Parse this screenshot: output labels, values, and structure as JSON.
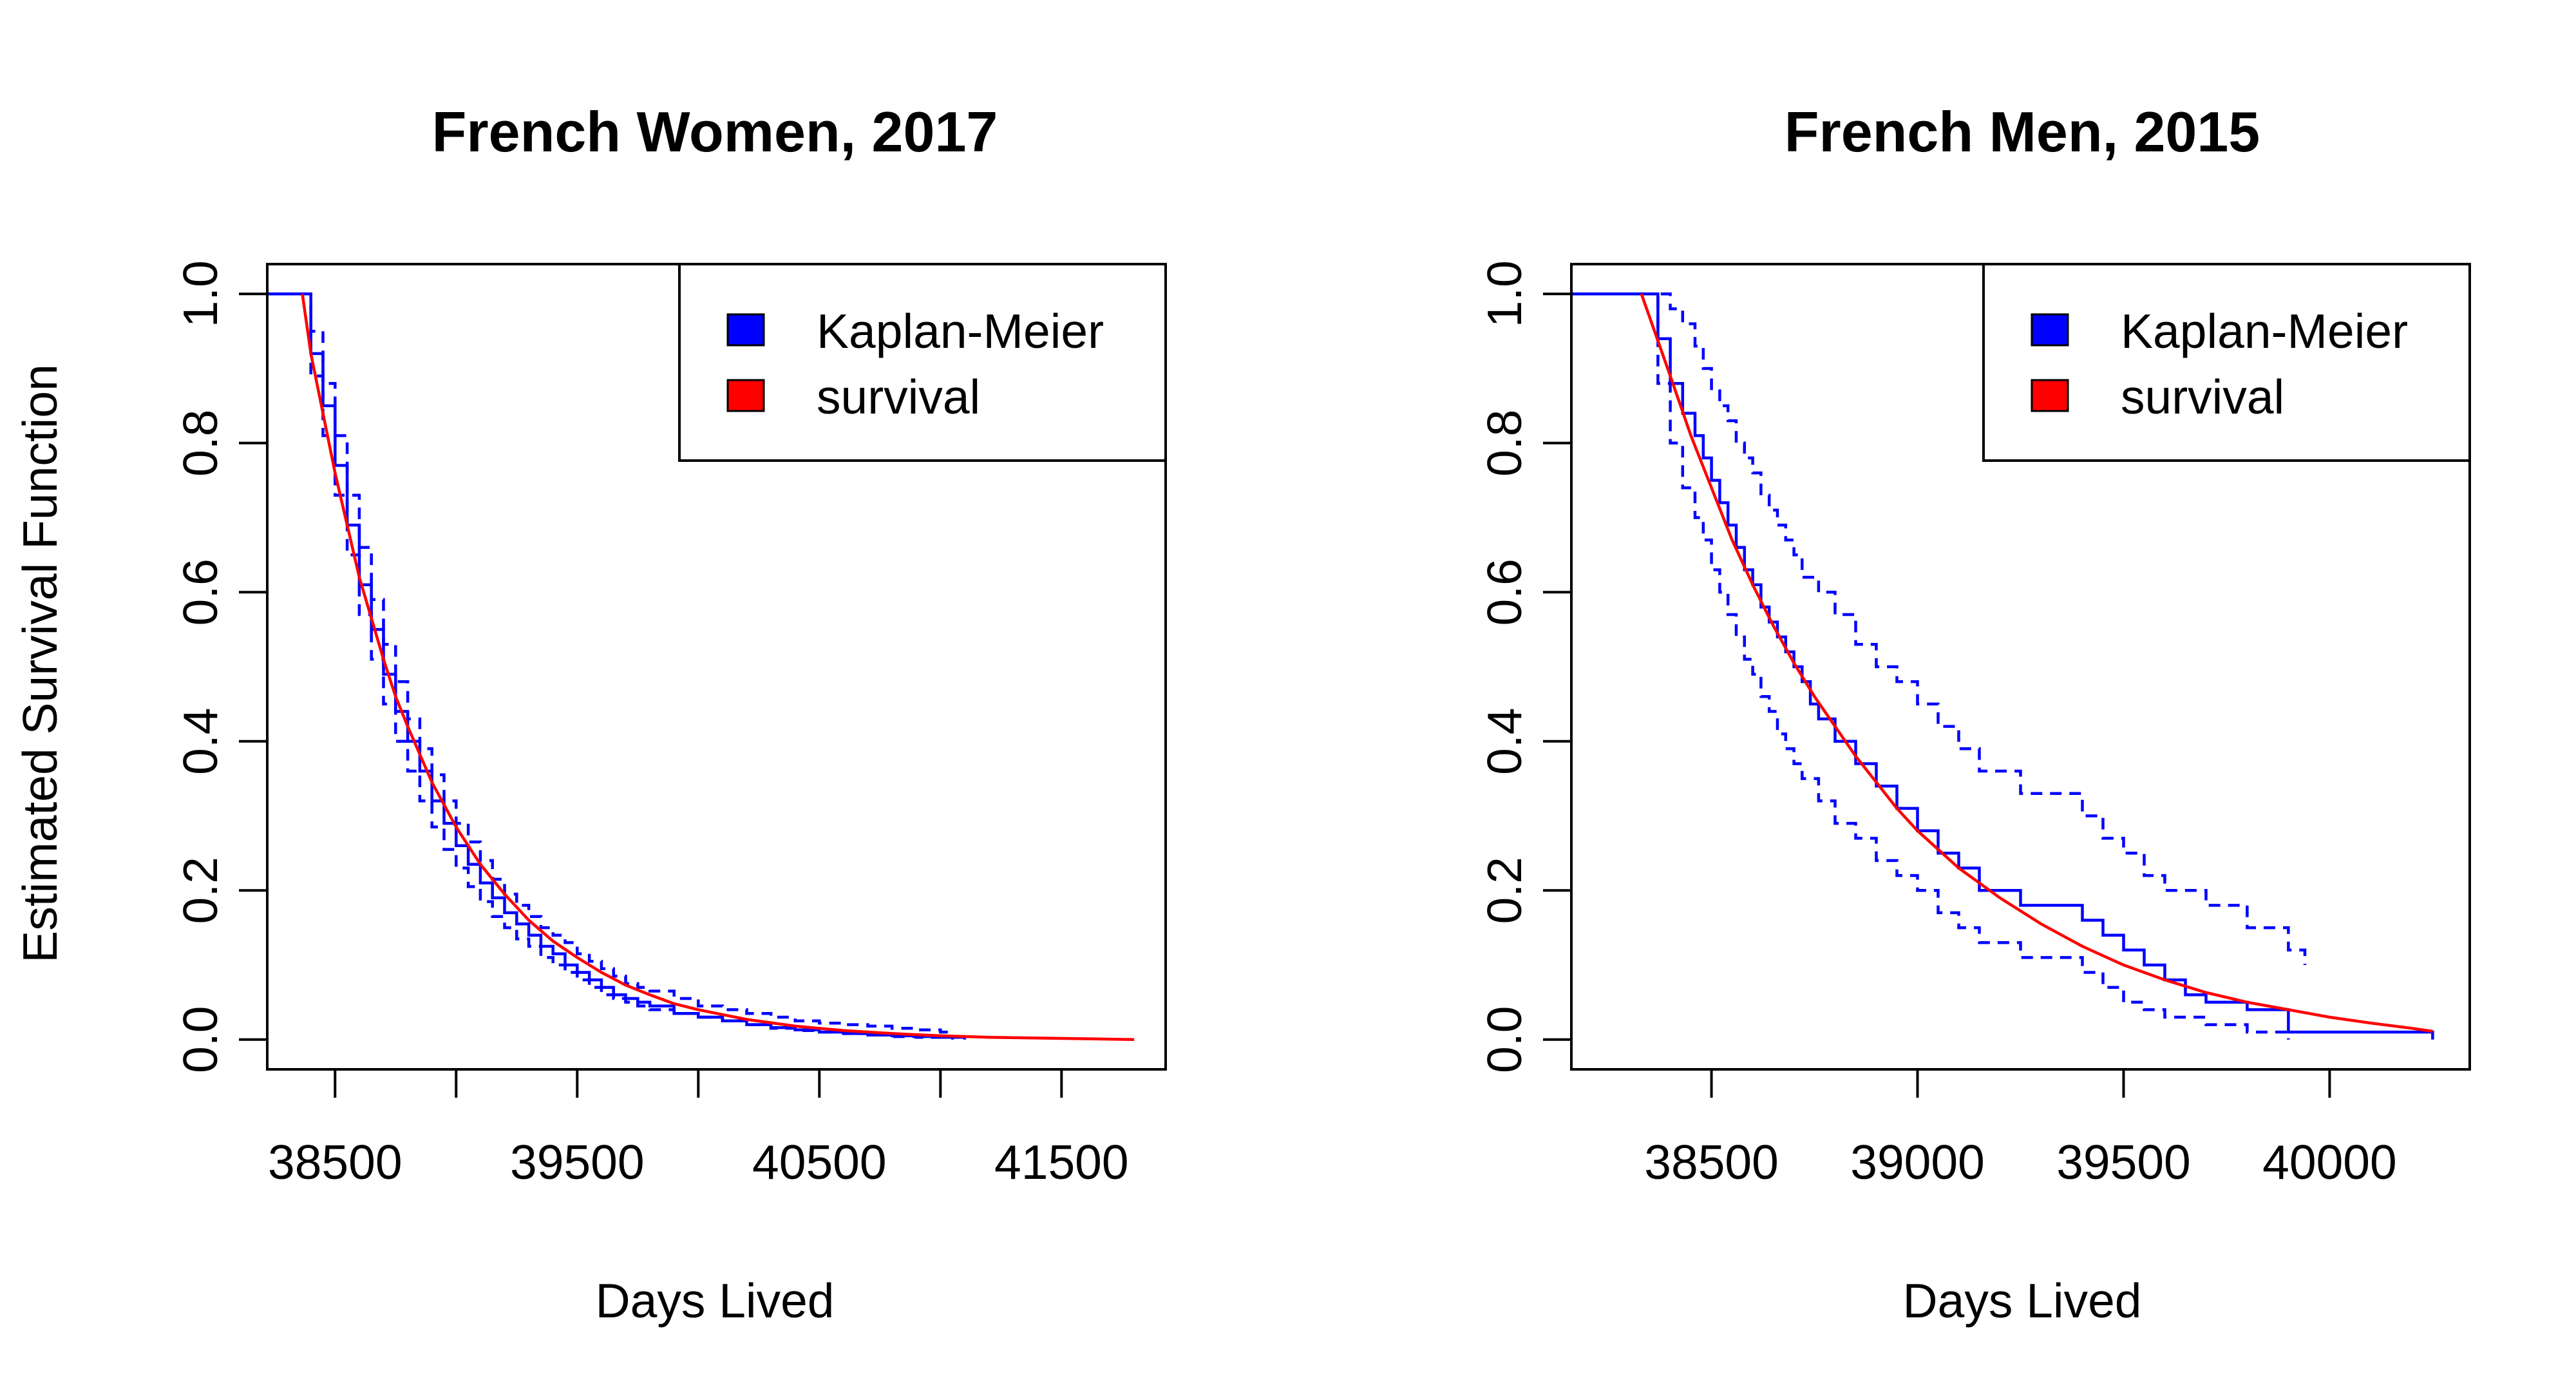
{
  "figure": {
    "shared_ylabel": "Estimated Survival Function"
  },
  "chart_data": [
    {
      "type": "line",
      "title": "French Women, 2017",
      "xlabel": "Days Lived",
      "ylabel": "Estimated Survival Function",
      "xlim": [
        38220,
        41930
      ],
      "ylim": [
        -0.04,
        1.04
      ],
      "xticks": [
        38500,
        39000,
        39500,
        40000,
        40500,
        41000,
        41500
      ],
      "xtick_labels": [
        "38500",
        "",
        "39500",
        "",
        "40500",
        "",
        "41500"
      ],
      "yticks": [
        0.0,
        0.2,
        0.4,
        0.6,
        0.8,
        1.0
      ],
      "ytick_labels": [
        "0.0",
        "0.2",
        "0.4",
        "0.6",
        "0.8",
        "1.0"
      ],
      "grid": false,
      "legend": {
        "position": "top-right",
        "entries": [
          {
            "label": "Kaplan-Meier",
            "color": "#0000ff"
          },
          {
            "label": "survival",
            "color": "#ff0000"
          }
        ]
      },
      "series": [
        {
          "name": "Kaplan-Meier",
          "color": "#0000ff",
          "style": "step",
          "x": [
            38220,
            38365,
            38400,
            38450,
            38500,
            38550,
            38600,
            38650,
            38700,
            38750,
            38800,
            38850,
            38900,
            38950,
            39000,
            39050,
            39100,
            39150,
            39200,
            39250,
            39300,
            39350,
            39400,
            39450,
            39500,
            39550,
            39600,
            39650,
            39700,
            39750,
            39800,
            39900,
            40000,
            40100,
            40200,
            40300,
            40400,
            40500,
            40600,
            40700,
            40800,
            40900,
            41000,
            41100
          ],
          "y": [
            1.0,
            1.0,
            0.92,
            0.85,
            0.77,
            0.69,
            0.61,
            0.55,
            0.49,
            0.44,
            0.4,
            0.36,
            0.32,
            0.29,
            0.26,
            0.235,
            0.21,
            0.19,
            0.17,
            0.155,
            0.14,
            0.125,
            0.115,
            0.1,
            0.09,
            0.08,
            0.07,
            0.06,
            0.055,
            0.05,
            0.045,
            0.035,
            0.03,
            0.025,
            0.02,
            0.016,
            0.013,
            0.01,
            0.008,
            0.006,
            0.005,
            0.004,
            0.003,
            0.0
          ]
        },
        {
          "name": "",
          "color": "#0000ff",
          "style": "dashed-step",
          "x": [
            38365,
            38400,
            38450,
            38500,
            38550,
            38600,
            38650,
            38700,
            38750,
            38800,
            38850,
            38900,
            38950,
            39000,
            39050,
            39100,
            39150,
            39200,
            39250,
            39300,
            39350,
            39400,
            39450,
            39500,
            39550,
            39600,
            39650,
            39700,
            39750,
            39800,
            39900,
            40000,
            40100,
            40200,
            40300,
            40400,
            40500,
            40600,
            40700,
            40800,
            40900,
            41000,
            41050
          ],
          "y": [
            1.0,
            0.95,
            0.88,
            0.81,
            0.73,
            0.66,
            0.59,
            0.53,
            0.48,
            0.43,
            0.39,
            0.355,
            0.32,
            0.29,
            0.265,
            0.24,
            0.215,
            0.195,
            0.18,
            0.165,
            0.15,
            0.14,
            0.13,
            0.115,
            0.105,
            0.095,
            0.085,
            0.075,
            0.07,
            0.065,
            0.055,
            0.045,
            0.04,
            0.035,
            0.03,
            0.025,
            0.022,
            0.02,
            0.018,
            0.015,
            0.013,
            0.01,
            0.0
          ]
        },
        {
          "name": "",
          "color": "#0000ff",
          "style": "dashed-step",
          "x": [
            38365,
            38400,
            38450,
            38500,
            38550,
            38600,
            38650,
            38700,
            38750,
            38800,
            38850,
            38900,
            38950,
            39000,
            39050,
            39100,
            39150,
            39200,
            39250,
            39300,
            39350,
            39400,
            39450,
            39500,
            39550,
            39600,
            39650,
            39700,
            39750,
            39800,
            39900,
            40000,
            40100,
            40200,
            40300,
            40400,
            40500,
            40600,
            40700,
            40800,
            40900,
            41000
          ],
          "y": [
            1.0,
            0.89,
            0.81,
            0.73,
            0.65,
            0.57,
            0.51,
            0.45,
            0.4,
            0.36,
            0.32,
            0.285,
            0.255,
            0.23,
            0.205,
            0.185,
            0.165,
            0.15,
            0.135,
            0.125,
            0.11,
            0.1,
            0.09,
            0.08,
            0.07,
            0.06,
            0.055,
            0.05,
            0.045,
            0.04,
            0.035,
            0.03,
            0.025,
            0.02,
            0.015,
            0.012,
            0.01,
            0.008,
            0.006,
            0.004,
            0.003,
            0.002
          ]
        },
        {
          "name": "survival",
          "color": "#ff0000",
          "style": "line",
          "x": [
            38365,
            38400,
            38450,
            38500,
            38550,
            38600,
            38650,
            38700,
            38750,
            38800,
            38900,
            39000,
            39100,
            39200,
            39300,
            39400,
            39500,
            39600,
            39700,
            39800,
            39900,
            40000,
            40200,
            40400,
            40600,
            40800,
            41000,
            41200,
            41400,
            41600,
            41800
          ],
          "y": [
            1.0,
            0.92,
            0.84,
            0.76,
            0.69,
            0.62,
            0.565,
            0.51,
            0.46,
            0.42,
            0.345,
            0.285,
            0.235,
            0.195,
            0.16,
            0.132,
            0.11,
            0.09,
            0.073,
            0.06,
            0.048,
            0.04,
            0.027,
            0.018,
            0.012,
            0.008,
            0.005,
            0.003,
            0.002,
            0.001,
            0.0
          ]
        }
      ]
    },
    {
      "type": "line",
      "title": "French Men, 2015",
      "xlabel": "Days Lived",
      "ylabel": "",
      "xlim": [
        38160,
        40340
      ],
      "ylim": [
        -0.04,
        1.04
      ],
      "xticks": [
        38500,
        39000,
        39500,
        40000
      ],
      "xtick_labels": [
        "38500",
        "39000",
        "39500",
        "40000"
      ],
      "yticks": [
        0.0,
        0.2,
        0.4,
        0.6,
        0.8,
        1.0
      ],
      "ytick_labels": [
        "0.0",
        "0.2",
        "0.4",
        "0.6",
        "0.8",
        "1.0"
      ],
      "grid": false,
      "legend": {
        "position": "top-right",
        "entries": [
          {
            "label": "Kaplan-Meier",
            "color": "#0000ff"
          },
          {
            "label": "survival",
            "color": "#ff0000"
          }
        ]
      },
      "series": [
        {
          "name": "Kaplan-Meier",
          "color": "#0000ff",
          "style": "step",
          "x": [
            38160,
            38330,
            38370,
            38400,
            38430,
            38460,
            38480,
            38500,
            38520,
            38540,
            38560,
            38580,
            38600,
            38620,
            38640,
            38660,
            38680,
            38700,
            38720,
            38740,
            38760,
            38800,
            38850,
            38900,
            38950,
            39000,
            39050,
            39100,
            39150,
            39250,
            39400,
            39450,
            39500,
            39550,
            39600,
            39650,
            39700,
            39800,
            39900,
            40250
          ],
          "y": [
            1.0,
            1.0,
            0.94,
            0.88,
            0.84,
            0.81,
            0.78,
            0.75,
            0.72,
            0.69,
            0.66,
            0.63,
            0.61,
            0.58,
            0.56,
            0.54,
            0.52,
            0.5,
            0.48,
            0.45,
            0.43,
            0.4,
            0.37,
            0.34,
            0.31,
            0.28,
            0.25,
            0.23,
            0.2,
            0.18,
            0.16,
            0.14,
            0.12,
            0.1,
            0.08,
            0.06,
            0.05,
            0.04,
            0.01,
            0.0
          ]
        },
        {
          "name": "",
          "color": "#0000ff",
          "style": "dashed-step",
          "x": [
            38330,
            38400,
            38430,
            38460,
            38480,
            38500,
            38520,
            38540,
            38560,
            38580,
            38600,
            38620,
            38640,
            38660,
            38680,
            38700,
            38720,
            38760,
            38800,
            38850,
            38900,
            38950,
            39000,
            39050,
            39100,
            39150,
            39250,
            39400,
            39450,
            39500,
            39550,
            39600,
            39700,
            39800,
            39900,
            39940
          ],
          "y": [
            1.0,
            0.98,
            0.96,
            0.93,
            0.9,
            0.87,
            0.85,
            0.83,
            0.8,
            0.78,
            0.76,
            0.73,
            0.71,
            0.69,
            0.67,
            0.65,
            0.62,
            0.6,
            0.57,
            0.53,
            0.5,
            0.48,
            0.45,
            0.42,
            0.39,
            0.36,
            0.33,
            0.3,
            0.27,
            0.25,
            0.22,
            0.2,
            0.18,
            0.15,
            0.12,
            0.1
          ]
        },
        {
          "name": "",
          "color": "#0000ff",
          "style": "dashed-step",
          "x": [
            38330,
            38370,
            38400,
            38430,
            38460,
            38480,
            38500,
            38520,
            38540,
            38560,
            38580,
            38600,
            38620,
            38640,
            38660,
            38680,
            38700,
            38720,
            38760,
            38800,
            38850,
            38900,
            38950,
            39000,
            39050,
            39100,
            39150,
            39250,
            39400,
            39450,
            39500,
            39550,
            39600,
            39700,
            39800,
            39900
          ],
          "y": [
            1.0,
            0.88,
            0.8,
            0.74,
            0.7,
            0.67,
            0.63,
            0.6,
            0.57,
            0.54,
            0.51,
            0.49,
            0.46,
            0.44,
            0.41,
            0.39,
            0.37,
            0.35,
            0.32,
            0.29,
            0.27,
            0.24,
            0.22,
            0.2,
            0.17,
            0.15,
            0.13,
            0.11,
            0.09,
            0.07,
            0.05,
            0.04,
            0.03,
            0.02,
            0.01,
            0.0
          ]
        },
        {
          "name": "survival",
          "color": "#ff0000",
          "style": "line",
          "x": [
            38330,
            38400,
            38450,
            38500,
            38550,
            38600,
            38650,
            38700,
            38750,
            38800,
            38850,
            38900,
            38950,
            39000,
            39100,
            39200,
            39300,
            39400,
            39500,
            39600,
            39700,
            39800,
            39900,
            40000,
            40100,
            40200,
            40250
          ],
          "y": [
            1.0,
            0.89,
            0.81,
            0.74,
            0.67,
            0.61,
            0.555,
            0.505,
            0.46,
            0.42,
            0.38,
            0.345,
            0.31,
            0.28,
            0.23,
            0.19,
            0.155,
            0.125,
            0.1,
            0.08,
            0.063,
            0.05,
            0.04,
            0.03,
            0.022,
            0.015,
            0.011
          ]
        }
      ]
    }
  ]
}
